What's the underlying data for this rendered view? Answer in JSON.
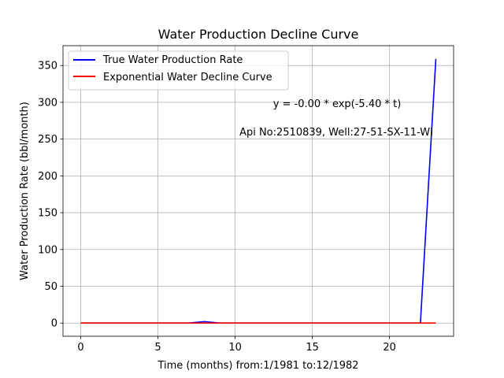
{
  "chart_data": {
    "type": "line",
    "title": "Water Production Decline Curve",
    "xlabel": "Time (months) from:1/1981 to:12/1982",
    "ylabel": "Water Production Rate (bbl/month)",
    "xlim": [
      -1.15,
      24.15
    ],
    "ylim": [
      -17.95,
      376.95
    ],
    "xticks": [
      0,
      5,
      10,
      15,
      20
    ],
    "yticks": [
      0,
      50,
      100,
      150,
      200,
      250,
      300,
      350
    ],
    "grid": true,
    "legend_position": "top-left",
    "series": [
      {
        "name": "True Water Production Rate",
        "color": "#0000ff",
        "x": [
          0,
          1,
          2,
          3,
          4,
          5,
          6,
          7,
          8,
          9,
          10,
          11,
          12,
          13,
          14,
          15,
          16,
          17,
          18,
          19,
          20,
          21,
          22,
          23
        ],
        "y": [
          0,
          0,
          0,
          0,
          0,
          0,
          0,
          0,
          2,
          0,
          0,
          0,
          0,
          0,
          0,
          0,
          0,
          0,
          0,
          0,
          0,
          0,
          0,
          359
        ]
      },
      {
        "name": "Exponential Water Decline Curve",
        "color": "#ff0000",
        "x": [
          0,
          1,
          2,
          3,
          4,
          5,
          6,
          7,
          8,
          9,
          10,
          11,
          12,
          13,
          14,
          15,
          16,
          17,
          18,
          19,
          20,
          21,
          22,
          23
        ],
        "y": [
          0,
          0,
          0,
          0,
          0,
          0,
          0,
          0,
          0,
          0,
          0,
          0,
          0,
          0,
          0,
          0,
          0,
          0,
          0,
          0,
          0,
          0,
          0,
          0
        ]
      }
    ],
    "annotations": [
      {
        "text": "y = -0.00 * exp(-5.40 * t)"
      },
      {
        "text": "Api No:2510839, Well:27-51-SX-11-WI"
      }
    ]
  }
}
